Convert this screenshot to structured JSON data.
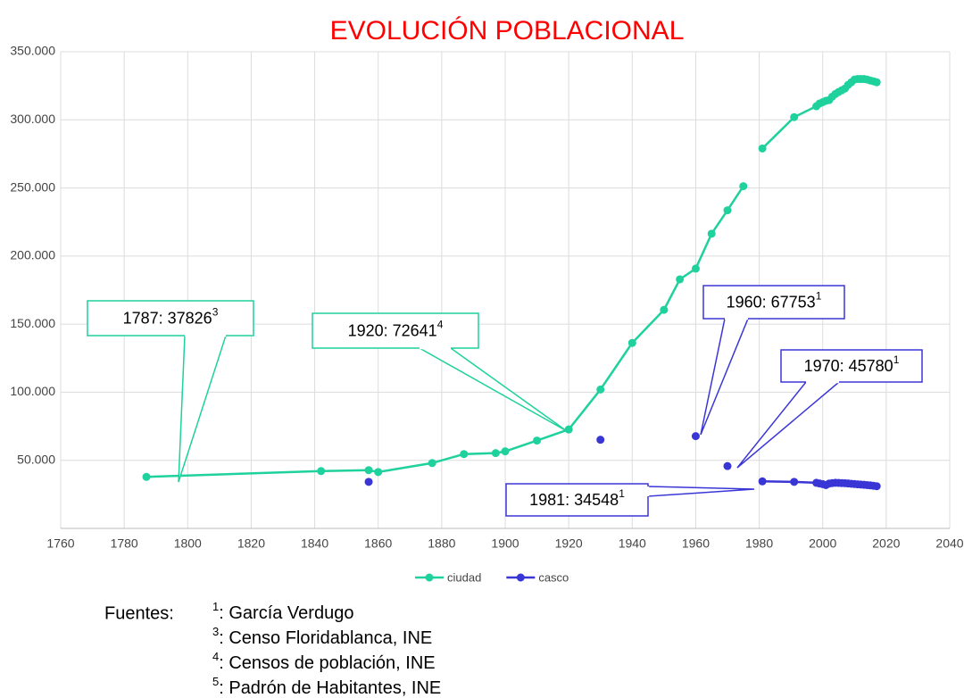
{
  "chart_data": {
    "type": "line",
    "title": "EVOLUCIÓN POBLACIONAL",
    "title_color": "#ff0000",
    "xlim": [
      1760,
      2040
    ],
    "xticks": [
      1760,
      1780,
      1800,
      1820,
      1840,
      1860,
      1880,
      1900,
      1920,
      1940,
      1960,
      1980,
      2000,
      2020,
      2040
    ],
    "ylim": [
      0,
      350000
    ],
    "yticks": [
      {
        "value": 50000,
        "label": "50.000"
      },
      {
        "value": 100000,
        "label": "100.000"
      },
      {
        "value": 150000,
        "label": "150.000"
      },
      {
        "value": 200000,
        "label": "200.000"
      },
      {
        "value": 250000,
        "label": "250.000"
      },
      {
        "value": 300000,
        "label": "300.000"
      },
      {
        "value": 350000,
        "label": "350.000"
      }
    ],
    "grid": true,
    "legend": "bottom",
    "series": [
      {
        "name": "ciudad",
        "color": "#1fd19c",
        "x": [
          1787,
          1842,
          1857,
          1860,
          1877,
          1887,
          1897,
          1900,
          1910,
          1920,
          1930,
          1940,
          1950,
          1955,
          1960,
          1965,
          1970,
          1975,
          1980,
          1981,
          1991,
          1998,
          1999,
          2000,
          2001,
          2002,
          2003,
          2004,
          2005,
          2006,
          2007,
          2008,
          2009,
          2010,
          2011,
          2012,
          2013,
          2014,
          2015,
          2016,
          2017
        ],
        "values": [
          37826,
          42100,
          42800,
          41400,
          48000,
          54600,
          55300,
          56600,
          64500,
          72641,
          102000,
          136200,
          160500,
          182900,
          190800,
          216400,
          233600,
          251300,
          null,
          279000,
          302000,
          310000,
          312000,
          313000,
          314000,
          314500,
          317000,
          319000,
          320500,
          321700,
          323000,
          325700,
          327600,
          329600,
          330000,
          330000,
          330000,
          329600,
          328900,
          328300,
          327600
        ]
      },
      {
        "name": "casco",
        "color": "#3a36d6",
        "x": [
          1857,
          1900,
          1930,
          1945,
          1960,
          1965,
          1970,
          1975,
          1981,
          1991,
          1998,
          1999,
          2000,
          2001,
          2002,
          2003,
          2004,
          2005,
          2006,
          2007,
          2008,
          2009,
          2010,
          2011,
          2012,
          2013,
          2014,
          2015,
          2016,
          2017
        ],
        "values": [
          34200,
          null,
          65100,
          null,
          67753,
          null,
          45780,
          null,
          34548,
          34200,
          33500,
          33000,
          32500,
          31800,
          32900,
          33300,
          33500,
          33400,
          33300,
          33200,
          33000,
          32800,
          32600,
          32400,
          32200,
          32000,
          31800,
          31600,
          31300,
          31000
        ]
      }
    ],
    "annotations": [
      {
        "text": "1787: 37826",
        "sup": "3",
        "color": "#1fd19c"
      },
      {
        "text": "1920: 72641",
        "sup": "4",
        "color": "#1fd19c"
      },
      {
        "text": "1960: 67753",
        "sup": "1",
        "color": "#3a36d6"
      },
      {
        "text": "1970: 45780",
        "sup": "1",
        "color": "#3a36d6"
      },
      {
        "text": "1981: 34548",
        "sup": "1",
        "color": "#3a36d6"
      }
    ]
  },
  "sources": {
    "label": "Fuentes:",
    "items": [
      {
        "sup": "1",
        "text": ": García Verdugo"
      },
      {
        "sup": "3",
        "text": ": Censo Floridablanca, INE"
      },
      {
        "sup": "4",
        "text": ": Censos de población, INE"
      },
      {
        "sup": "5",
        "text": ": Padrón de Habitantes, INE"
      }
    ]
  }
}
